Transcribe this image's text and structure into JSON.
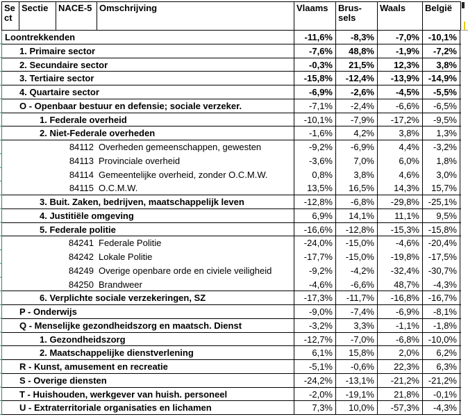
{
  "header": {
    "columns": [
      {
        "id": "sect",
        "label": "Sect"
      },
      {
        "id": "sectie",
        "label": "Sectie"
      },
      {
        "id": "nace5",
        "label": "NACE-5"
      },
      {
        "id": "omschrijving",
        "label": "Omschrijving"
      },
      {
        "id": "vlaams",
        "label": "Vlaams"
      },
      {
        "id": "brussels",
        "label": "Brus-sels"
      },
      {
        "id": "waals",
        "label": "Waals"
      },
      {
        "id": "belgie",
        "label": "België"
      }
    ]
  },
  "rows": [
    {
      "label": "Loontrekkenden",
      "indent": 0,
      "bold": true,
      "bold_values": true,
      "border_bottom": true,
      "values": [
        "-11,6%",
        "-8,3%",
        "-7,0%",
        "-10,1%"
      ]
    },
    {
      "label": "1. Primaire sector",
      "indent": 1,
      "bold": true,
      "bold_values": true,
      "border_bottom": true,
      "values": [
        "-7,6%",
        "48,8%",
        "-1,9%",
        "-7,2%"
      ]
    },
    {
      "label": "2. Secundaire sector",
      "indent": 1,
      "bold": true,
      "bold_values": true,
      "border_bottom": true,
      "values": [
        "-0,3%",
        "21,5%",
        "12,3%",
        "3,8%"
      ]
    },
    {
      "label": "3. Tertiaire sector",
      "indent": 1,
      "bold": true,
      "bold_values": true,
      "border_bottom": true,
      "values": [
        "-15,8%",
        "-12,4%",
        "-13,9%",
        "-14,9%"
      ]
    },
    {
      "label": "4. Quartaire sector",
      "indent": 1,
      "bold": true,
      "bold_values": true,
      "border_bottom": true,
      "values": [
        "-6,9%",
        "-2,6%",
        "-4,5%",
        "-5,5%"
      ]
    },
    {
      "label": "O - Openbaar bestuur en defensie; sociale verzeker.",
      "indent": 1,
      "bold": true,
      "bold_values": false,
      "border_bottom": true,
      "values": [
        "-7,1%",
        "-2,4%",
        "-6,6%",
        "-6,5%"
      ]
    },
    {
      "label": "1. Federale overheid",
      "indent": 2,
      "bold": true,
      "bold_values": false,
      "border_bottom": true,
      "values": [
        "-10,1%",
        "-7,9%",
        "-17,2%",
        "-9,5%"
      ]
    },
    {
      "label": "2. Niet-Federale overheden",
      "indent": 2,
      "bold": true,
      "bold_values": false,
      "border_bottom": true,
      "values": [
        "-1,6%",
        "4,2%",
        "3,8%",
        "1,3%"
      ]
    },
    {
      "code": "84112",
      "label": "Overheden gemeenschappen, gewesten",
      "indent": 3,
      "bold": false,
      "bold_values": false,
      "border_bottom": false,
      "values": [
        "-9,2%",
        "-6,9%",
        "4,4%",
        "-3,2%"
      ]
    },
    {
      "code": "84113",
      "label": "Provinciale overheid",
      "indent": 3,
      "bold": false,
      "bold_values": false,
      "border_bottom": false,
      "values": [
        "-3,6%",
        "7,0%",
        "6,0%",
        "1,8%"
      ]
    },
    {
      "code": "84114",
      "label": "Gemeentelijke overheid, zonder O.C.M.W.",
      "indent": 3,
      "bold": false,
      "bold_values": false,
      "border_bottom": false,
      "values": [
        "0,8%",
        "3,8%",
        "4,6%",
        "3,0%"
      ]
    },
    {
      "code": "84115",
      "label": "O.C.M.W.",
      "indent": 3,
      "bold": false,
      "bold_values": false,
      "border_bottom": true,
      "values": [
        "13,5%",
        "16,5%",
        "14,3%",
        "15,7%"
      ]
    },
    {
      "label": "3. Buit. Zaken, bedrijven, maatschappelijk leven",
      "indent": 2,
      "bold": true,
      "bold_values": false,
      "border_bottom": true,
      "values": [
        "-12,8%",
        "-6,8%",
        "-29,8%",
        "-25,1%"
      ]
    },
    {
      "label": "4. Justitiële omgeving",
      "indent": 2,
      "bold": true,
      "bold_values": false,
      "border_bottom": true,
      "values": [
        "6,9%",
        "14,1%",
        "11,1%",
        "9,5%"
      ]
    },
    {
      "label": "5. Federale politie",
      "indent": 2,
      "bold": true,
      "bold_values": false,
      "border_bottom": true,
      "values": [
        "-16,6%",
        "-12,8%",
        "-15,3%",
        "-15,8%"
      ]
    },
    {
      "code": "84241",
      "label": "Federale Politie",
      "indent": 3,
      "bold": false,
      "bold_values": false,
      "border_bottom": false,
      "values": [
        "-24,0%",
        "-15,0%",
        "-4,6%",
        "-20,4%"
      ]
    },
    {
      "code": "84242",
      "label": "Lokale Politie",
      "indent": 3,
      "bold": false,
      "bold_values": false,
      "border_bottom": false,
      "values": [
        "-17,7%",
        "-15,0%",
        "-19,8%",
        "-17,5%"
      ]
    },
    {
      "code": "84249",
      "label": "Overige openbare orde en civiele veiligheid",
      "indent": 3,
      "bold": false,
      "bold_values": false,
      "border_bottom": false,
      "values": [
        "-9,2%",
        "-4,2%",
        "-32,4%",
        "-30,7%"
      ]
    },
    {
      "code": "84250",
      "label": "Brandweer",
      "indent": 3,
      "bold": false,
      "bold_values": false,
      "border_bottom": true,
      "values": [
        "-4,6%",
        "-6,6%",
        "48,7%",
        "-4,3%"
      ]
    },
    {
      "label": "6. Verplichte sociale verzekeringen, SZ",
      "indent": 2,
      "bold": true,
      "bold_values": false,
      "border_bottom": true,
      "values": [
        "-17,3%",
        "-11,7%",
        "-16,8%",
        "-16,7%"
      ]
    },
    {
      "label": "P - Onderwijs",
      "indent": 1,
      "bold": true,
      "bold_values": false,
      "border_bottom": true,
      "values": [
        "-9,0%",
        "-7,4%",
        "-6,9%",
        "-8,1%"
      ]
    },
    {
      "label": "Q - Menselijke gezondheidszorg en maatsch. Dienst",
      "indent": 1,
      "bold": true,
      "bold_values": false,
      "border_bottom": true,
      "values": [
        "-3,2%",
        "3,3%",
        "-1,1%",
        "-1,8%"
      ]
    },
    {
      "label": "1. Gezondheidszorg",
      "indent": 2,
      "bold": true,
      "bold_values": false,
      "border_bottom": true,
      "values": [
        "-12,7%",
        "-7,0%",
        "-6,8%",
        "-10,0%"
      ]
    },
    {
      "label": "2. Maatschappelijke dienstverlening",
      "indent": 2,
      "bold": true,
      "bold_values": false,
      "border_bottom": true,
      "values": [
        "6,1%",
        "15,8%",
        "2,0%",
        "6,2%"
      ]
    },
    {
      "label": "R - Kunst, amusement en recreatie",
      "indent": 1,
      "bold": true,
      "bold_values": false,
      "border_bottom": true,
      "values": [
        "-5,1%",
        "-0,6%",
        "22,3%",
        "6,3%"
      ]
    },
    {
      "label": "S - Overige diensten",
      "indent": 1,
      "bold": true,
      "bold_values": false,
      "border_bottom": true,
      "values": [
        "-24,2%",
        "-13,1%",
        "-21,2%",
        "-21,2%"
      ]
    },
    {
      "label": "T - Huishouden, werkgever van huish. personeel",
      "indent": 1,
      "bold": true,
      "bold_values": false,
      "border_bottom": true,
      "values": [
        "-2,0%",
        "-19,1%",
        "21,8%",
        "-0,1%"
      ]
    },
    {
      "label": "U - Extraterritoriale organisaties en lichamen",
      "indent": 1,
      "bold": true,
      "bold_values": false,
      "border_bottom": true,
      "values": [
        "7,3%",
        "10,0%",
        "-57,3%",
        "-4,3%"
      ]
    }
  ],
  "colors": {
    "gridline_green": "#2e8b57",
    "cell_border_black": "#000000",
    "neighbor_yellow": "#e8c916",
    "text": "#000000",
    "background": "#ffffff"
  }
}
